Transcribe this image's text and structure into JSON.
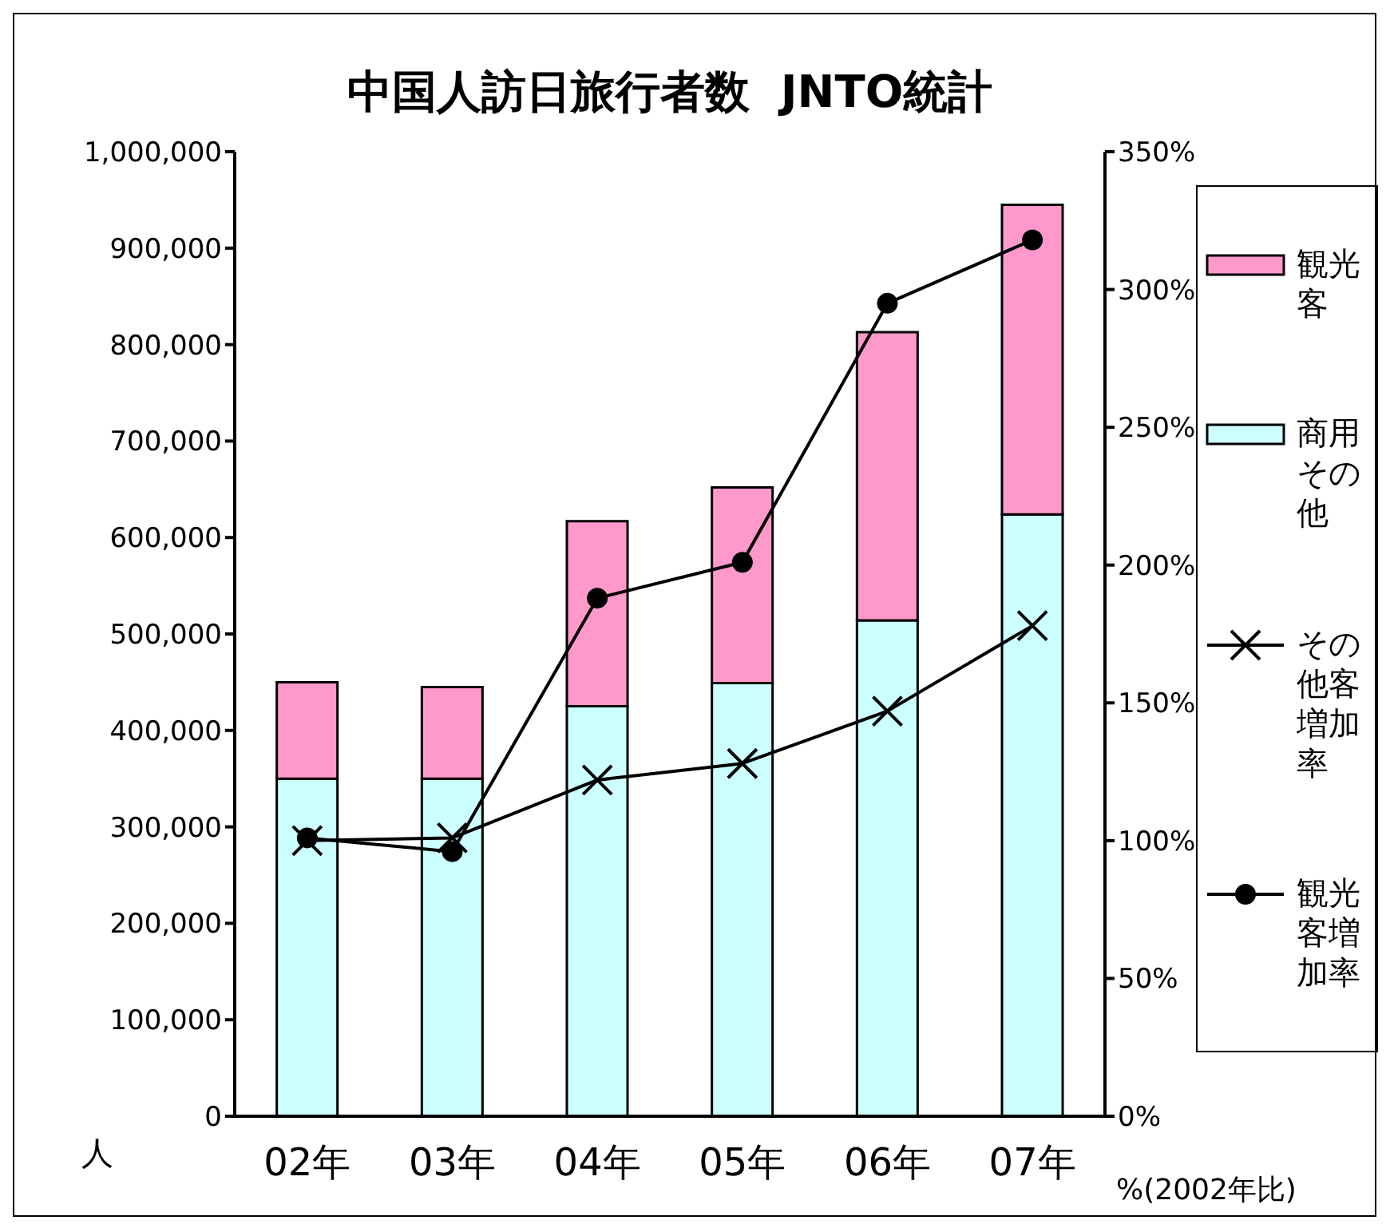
{
  "chart_data": {
    "type": "bar",
    "title": "中国人訪日旅行者数  JNTO統計",
    "ylabel": "人",
    "y2label": "%(2002年比)",
    "categories": [
      "02年",
      "03年",
      "04年",
      "05年",
      "06年",
      "07年"
    ],
    "stacked": true,
    "series": [
      {
        "name": "商用その他",
        "color": "#ccffff",
        "values": [
          350000,
          350000,
          425000,
          449000,
          514000,
          624000
        ]
      },
      {
        "name": "観光客",
        "color": "#ff99cc",
        "values": [
          100000,
          95000,
          192000,
          203000,
          299000,
          321000
        ]
      },
      {
        "name": "その他客増加率",
        "type": "line",
        "axis": "y2",
        "color": "#000000",
        "marker": "cross",
        "values": [
          100,
          101,
          122,
          128,
          147,
          178
        ]
      },
      {
        "name": "観光客増加率",
        "type": "line",
        "axis": "y2",
        "color": "#000000",
        "marker": "circle",
        "values": [
          101,
          96,
          188,
          201,
          295,
          318
        ]
      }
    ],
    "ylim": [
      0,
      1000000
    ],
    "yticks": [
      0,
      {
        "value": 100000,
        "label": "100,000"
      },
      {
        "value": 200000,
        "label": "200,000"
      },
      {
        "value": 300000,
        "label": "300,000"
      },
      {
        "value": 400000,
        "label": "400,000"
      },
      {
        "value": 500000,
        "label": "500,000"
      },
      {
        "value": 600000,
        "label": "600,000"
      },
      {
        "value": 700000,
        "label": "700,000"
      },
      {
        "value": 800000,
        "label": "800,000"
      },
      {
        "value": 900000,
        "label": "900,000"
      },
      {
        "value": 1000000,
        "label": "1,000,000"
      }
    ],
    "y2lim": [
      0,
      350
    ],
    "y2ticks": [
      {
        "value": 0,
        "label": "0%"
      },
      {
        "value": 50,
        "label": "50%"
      },
      {
        "value": 100,
        "label": "100%"
      },
      {
        "value": 150,
        "label": "150%"
      },
      {
        "value": 200,
        "label": "200%"
      },
      {
        "value": 250,
        "label": "250%"
      },
      {
        "value": 300,
        "label": "300%"
      },
      {
        "value": 350,
        "label": "350%"
      }
    ],
    "grid": false,
    "legend": "right"
  }
}
